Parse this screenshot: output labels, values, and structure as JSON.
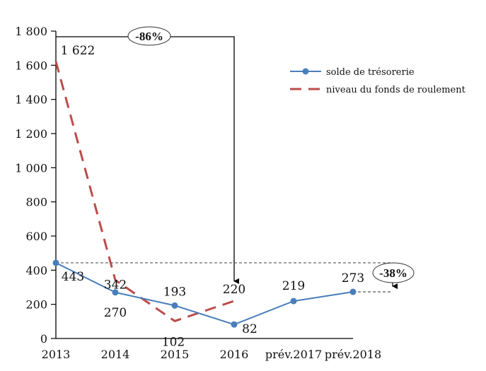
{
  "chart_data": {
    "type": "line",
    "title": "",
    "xlabel": "",
    "ylabel": "",
    "categories": [
      "2013",
      "2014",
      "2015",
      "2016",
      "prév.2017",
      "prév.2018"
    ],
    "ylim": [
      0,
      1800
    ],
    "yticks": [
      0,
      200,
      400,
      600,
      800,
      1000,
      1200,
      1400,
      1600,
      1800
    ],
    "ytick_labels": [
      "0",
      "200",
      "400",
      "600",
      "800",
      "1 000",
      "1 200",
      "1 400",
      "1 600",
      "1 800"
    ],
    "grid": false,
    "legend_position": "top-right",
    "series": [
      {
        "name": "solde de trésorerie",
        "color": "#4a7ebb",
        "style": "solid-with-markers",
        "values": [
          443,
          270,
          193,
          82,
          219,
          273
        ],
        "labels": [
          "443",
          "270",
          "193",
          "82",
          "219",
          "273"
        ]
      },
      {
        "name": "niveau du fonds de roulement",
        "color": "#be4b48",
        "style": "dashed",
        "values": [
          1622,
          342,
          102,
          220,
          null,
          null
        ],
        "labels": [
          "1 622",
          "342",
          "102",
          "220",
          "",
          ""
        ]
      }
    ],
    "annotations": [
      {
        "text": "-86%",
        "from_category": "2013",
        "from_value": 1622,
        "to_category": "2016",
        "to_value": 220,
        "type": "bracket-arrow"
      },
      {
        "text": "-38%",
        "from_value": 443,
        "to_value": 273,
        "type": "dotted-reference-arrow"
      }
    ]
  }
}
